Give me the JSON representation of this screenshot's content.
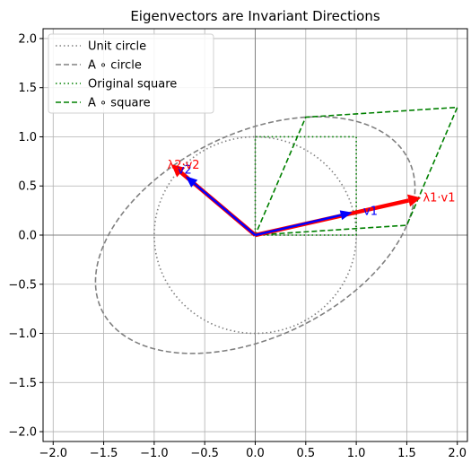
{
  "chart_data": {
    "type": "line",
    "title": "Eigenvectors are Invariant Directions",
    "xlabel": "",
    "ylabel": "",
    "xlim": [
      -2.1,
      2.1
    ],
    "ylim": [
      -2.1,
      2.1
    ],
    "xticks": [
      -2.0,
      -1.5,
      -1.0,
      -0.5,
      0.0,
      0.5,
      1.0,
      1.5,
      2.0
    ],
    "yticks": [
      -2.0,
      -1.5,
      -1.0,
      -0.5,
      0.0,
      0.5,
      1.0,
      1.5,
      2.0
    ],
    "xtick_labels": [
      "−2.0",
      "−1.5",
      "−1.0",
      "−0.5",
      "0.0",
      "0.5",
      "1.0",
      "1.5",
      "2.0"
    ],
    "ytick_labels": [
      "−2.0",
      "−1.5",
      "−1.0",
      "−0.5",
      "0.0",
      "0.5",
      "1.0",
      "1.5",
      "2.0"
    ],
    "grid": true,
    "legend_position": "top-left",
    "matrix": [
      [
        1.5,
        0.5
      ],
      [
        0.1,
        1.2
      ]
    ],
    "series": [
      {
        "name": "Unit circle",
        "shape": "unit-circle",
        "color": "#808080",
        "style": "dotted"
      },
      {
        "name": "A ∘ circle",
        "shape": "transformed-circle",
        "color": "#808080",
        "style": "dashed"
      },
      {
        "name": "Original square",
        "shape": "polygon",
        "x": [
          0,
          1,
          1,
          0,
          0
        ],
        "y": [
          0,
          0,
          1,
          1,
          0
        ],
        "color": "#008000",
        "style": "dotted"
      },
      {
        "name": "A ∘ square",
        "shape": "polygon",
        "x": [
          0,
          1.5,
          2.0,
          0.5,
          0
        ],
        "y": [
          0,
          0.1,
          1.3,
          1.2,
          0
        ],
        "color": "#008000",
        "style": "dashed"
      }
    ],
    "vectors": [
      {
        "label": "v1",
        "x": 0.96,
        "y": 0.23,
        "color": "#0000ff",
        "width": "thin"
      },
      {
        "label": "v2",
        "x": -0.69,
        "y": 0.6,
        "color": "#0000ff",
        "width": "thin"
      },
      {
        "label": "λ1·v1",
        "x": 1.64,
        "y": 0.38,
        "color": "#ff0000",
        "width": "thick"
      },
      {
        "label": "λ2·v2",
        "x": -0.83,
        "y": 0.72,
        "color": "#ff0000",
        "width": "thick"
      }
    ],
    "annotations": [
      {
        "text": "v1",
        "x": 1.07,
        "y": 0.24,
        "color": "#0000ff"
      },
      {
        "text": "v2",
        "x": -0.77,
        "y": 0.66,
        "color": "#0000ff"
      },
      {
        "text": "λ1·v1",
        "x": 1.66,
        "y": 0.38,
        "color": "#ff0000"
      },
      {
        "text": "λ2·v2",
        "x": -0.87,
        "y": 0.71,
        "color": "#ff0000"
      }
    ]
  }
}
